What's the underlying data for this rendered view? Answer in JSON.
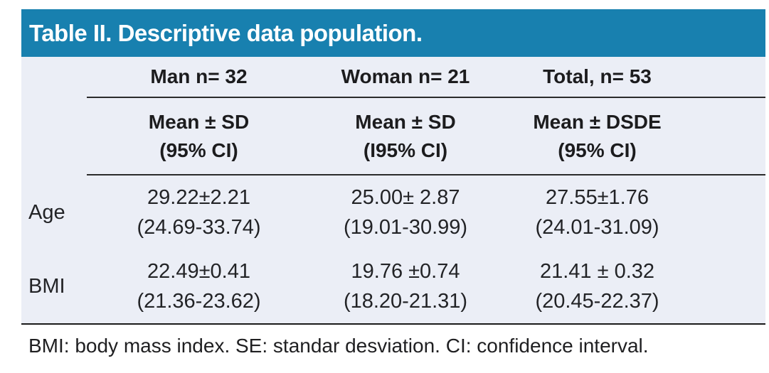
{
  "title": "Table II. Descriptive data population.",
  "colors": {
    "header_bg": "#1880AF",
    "body_bg": "#EBEEF6",
    "title_text": "#FFFFFF",
    "text": "#1C1C1E"
  },
  "table": {
    "columns": [
      {
        "label": "Man n= 32",
        "stat_line": "Mean ± SD",
        "ci_line": "(95% CI)"
      },
      {
        "label": "Woman n= 21",
        "stat_line": "Mean ± SD",
        "ci_line": "(I95% CI)"
      },
      {
        "label": "Total, n= 53",
        "stat_line": "Mean ± DSDE",
        "ci_line": "(95% CI)"
      }
    ],
    "rows": [
      {
        "label": "Age",
        "cells": [
          {
            "value": "29.22±2.21",
            "ci": "(24.69-33.74)"
          },
          {
            "value": "25.00± 2.87",
            "ci": "(19.01-30.99)"
          },
          {
            "value": "27.55±1.76",
            "ci": "(24.01-31.09)"
          }
        ]
      },
      {
        "label": "BMI",
        "cells": [
          {
            "value": "22.49±0.41",
            "ci": "(21.36-23.62)"
          },
          {
            "value": "19.76 ±0.74",
            "ci": "(18.20-21.31)"
          },
          {
            "value": "21.41 ± 0.32",
            "ci": "(20.45-22.37)"
          }
        ]
      }
    ]
  },
  "footnote": "BMI: body mass index. SE: standar desviation. CI: confidence interval."
}
